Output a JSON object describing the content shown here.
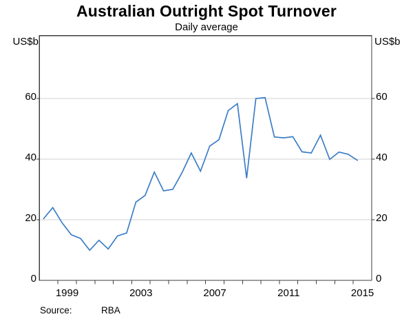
{
  "chart_data": {
    "type": "line",
    "title": "Australian Outright Spot Turnover",
    "subtitle": "Daily average",
    "left_axis_unit": "US$b",
    "right_axis_unit": "US$b",
    "source_label": "Source:",
    "source_value": "RBA",
    "legend": "none",
    "grid": "horizontal-only",
    "line_color": "#3b7dc6",
    "axis_color": "#3d3d3d",
    "grid_color": "#d2d2d2",
    "y_ticks": [
      0,
      20,
      40,
      60
    ],
    "ylim": [
      0,
      81
    ],
    "x_tick_labels": [
      "1999",
      "2003",
      "2007",
      "2011",
      "2015"
    ],
    "x_year_span": [
      1998,
      2016
    ],
    "frequency": "semiannual",
    "series": [
      {
        "name": "Australian outright spot turnover, daily average (US$b)",
        "x": [
          "1998 H1",
          "1998 H2",
          "1999 H1",
          "1999 H2",
          "2000 H1",
          "2000 H2",
          "2001 H1",
          "2001 H2",
          "2002 H1",
          "2002 H2",
          "2003 H1",
          "2003 H2",
          "2004 H1",
          "2004 H2",
          "2005 H1",
          "2005 H2",
          "2006 H1",
          "2006 H2",
          "2007 H1",
          "2007 H2",
          "2008 H1",
          "2008 H2",
          "2009 H1",
          "2009 H2",
          "2010 H1",
          "2010 H2",
          "2011 H1",
          "2011 H2",
          "2012 H1",
          "2012 H2",
          "2013 H1",
          "2013 H2",
          "2014 H1",
          "2014 H2",
          "2015 H1"
        ],
        "values": [
          20.3,
          24,
          19,
          15,
          13.8,
          9.9,
          13.2,
          10.3,
          14.6,
          15.6,
          25.8,
          28,
          35.7,
          29.5,
          30,
          35.5,
          42,
          36,
          44.3,
          46.4,
          56,
          58.3,
          33.7,
          60,
          60.3,
          47.3,
          47,
          47.4,
          42.4,
          42,
          47.9,
          39.9,
          42.3,
          41.6,
          39.6
        ]
      }
    ]
  }
}
